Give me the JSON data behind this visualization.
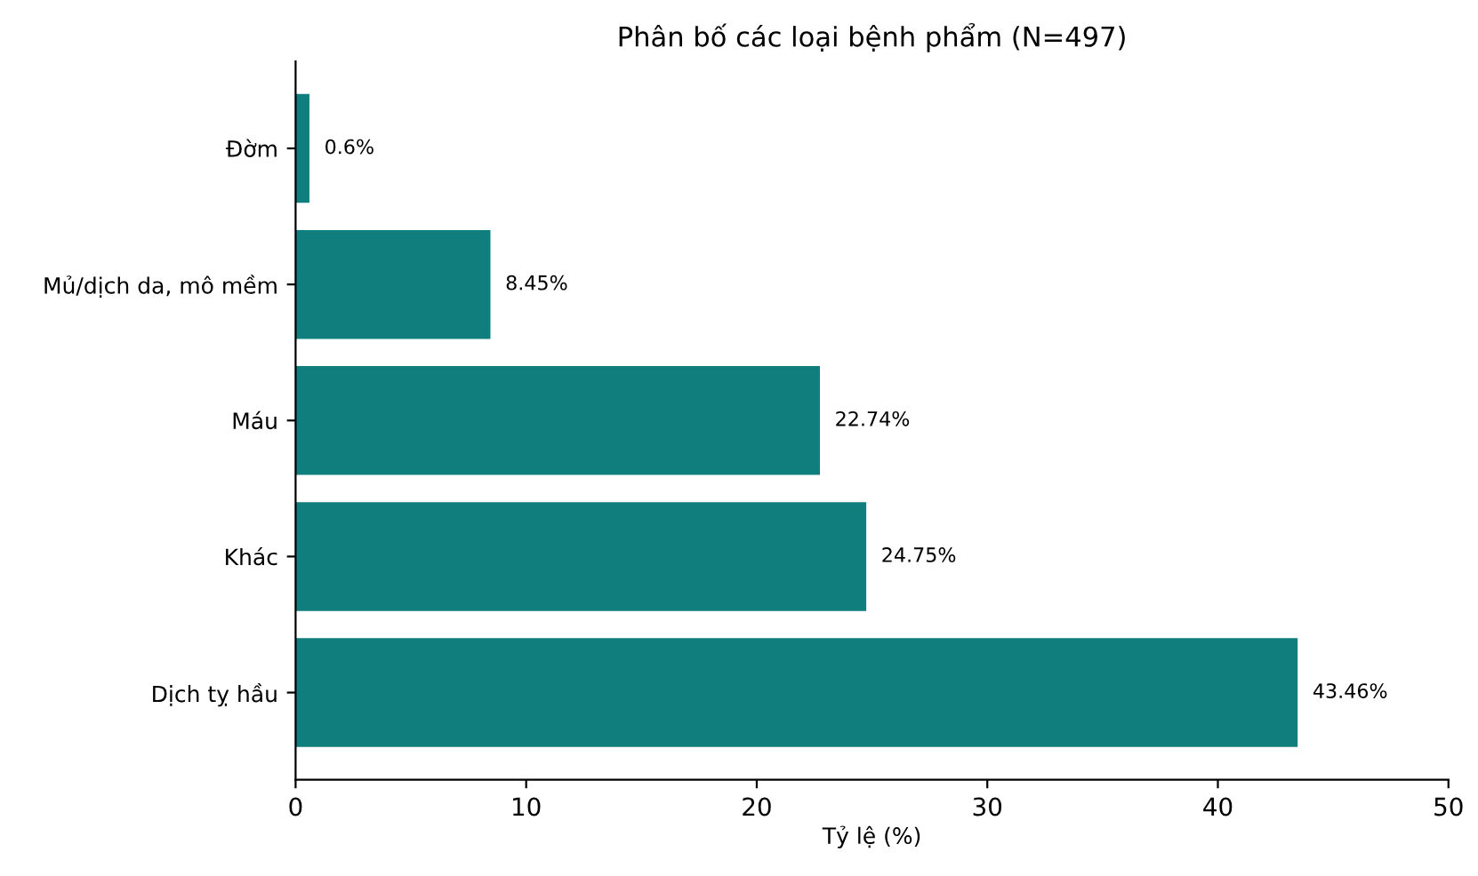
{
  "chart_data": {
    "type": "bar",
    "orientation": "horizontal",
    "title": "Phân bố các loại bệnh phẩm (N=497)",
    "xlabel": "Tỷ lệ (%)",
    "categories": [
      "Đờm",
      "Mủ/dịch da, mô mềm",
      "Máu",
      "Khác",
      "Dịch tỵ hầu"
    ],
    "values": [
      0.6,
      8.45,
      22.74,
      24.75,
      43.46
    ],
    "value_labels": [
      "0.6%",
      "8.45%",
      "22.74%",
      "24.75%",
      "43.46%"
    ],
    "color": "#0f7e7c",
    "xlim": [
      0,
      50
    ],
    "xticks": [
      0,
      10,
      20,
      30,
      40,
      50
    ],
    "grid": false
  }
}
